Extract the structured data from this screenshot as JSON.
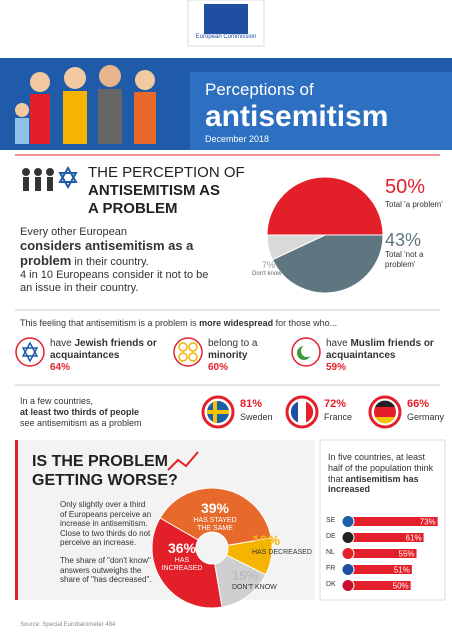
{
  "header": {
    "logo": "European Commission",
    "title": "Perceptions of",
    "subtitle": "antisemitism",
    "date": "December 2018"
  },
  "problem": {
    "title": [
      "THE PERCEPTION OF",
      "ANTISEMITISM AS",
      "A PROBLEM"
    ],
    "text": {
      "lead": "Every other European",
      "bold": "considers antisemitism as a problem",
      "rest": " in their country.",
      "line2": "4 in 10 Europeans consider it not to be an issue in their country."
    },
    "chart": {
      "type": "pie",
      "categories": [
        "Total 'a problem'",
        "Total 'not a problem'",
        "Don't know"
      ],
      "values": [
        50,
        43,
        7
      ],
      "value_labels": [
        "50%",
        "43%",
        "7%"
      ],
      "colors": [
        "#e3202a",
        "#5f7580",
        "#d9d9d9"
      ]
    }
  },
  "widespread": {
    "before": "This feeling that antisemitism is a problem is ",
    "bold": "more widespread",
    "after": " for those who..."
  },
  "groups": [
    {
      "pre": "have",
      "bold": "Jewish friends or acquaintances",
      "value": "64%"
    },
    {
      "pre": "belong to a",
      "bold": "minority",
      "value": "60%"
    },
    {
      "pre": "have",
      "bold": "Muslim friends or acquaintances",
      "value": "59%"
    }
  ],
  "countries": {
    "text": "In a few countries,",
    "bold": "at least two thirds of people",
    "rest": "see antisemitism as a problem",
    "items": [
      {
        "value": "81%",
        "name": "Sweden"
      },
      {
        "value": "72%",
        "name": "France"
      },
      {
        "value": "66%",
        "name": "Germany"
      }
    ]
  },
  "worse": {
    "title": [
      "IS THE PROBLEM",
      "GETTING WORSE?"
    ],
    "text1": "Only slightly over a third of Europeans perceive an increase in antisemitism. Close to two thirds do not perceive an increase.",
    "text2": "The share of \"don't know\" answers outweighs the share of \"has decreased\".",
    "chart": {
      "type": "donut",
      "categories": [
        "HAS STAYED THE SAME",
        "HAS DECREASED",
        "DON'T KNOW",
        "HAS INCREASED"
      ],
      "values": [
        39,
        10,
        15,
        36
      ],
      "value_labels": [
        "39%",
        "10%",
        "15%",
        "36%"
      ],
      "colors": [
        "#e8692c",
        "#f5b400",
        "#cfcfcf",
        "#e3202a"
      ]
    }
  },
  "increase": {
    "intro": "In five countries, at least half of the population think that",
    "bold": "antisemitism has increased",
    "chart": {
      "type": "bar",
      "categories": [
        "SE",
        "DE",
        "NL",
        "FR",
        "DK"
      ],
      "values": [
        73,
        61,
        55,
        51,
        50
      ],
      "value_labels": [
        "73%",
        "61%",
        "55%",
        "51%",
        "50%"
      ],
      "xlim": [
        0,
        100
      ],
      "color": "#e3202a"
    }
  },
  "source": "Source: Special Eurobarometer 484"
}
